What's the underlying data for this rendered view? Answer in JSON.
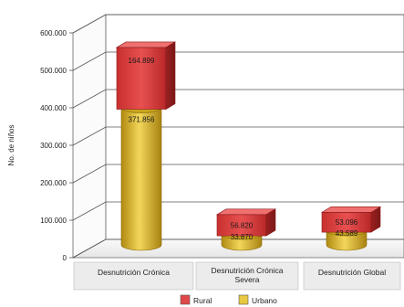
{
  "chart_data": {
    "type": "bar",
    "stacked": true,
    "three_d": true,
    "ylabel": "No. de niños",
    "ylim": [
      0,
      600000
    ],
    "y_ticks": [
      "0",
      "100.000",
      "200.000",
      "300.000",
      "400.000",
      "500.000",
      "600.000"
    ],
    "categories": [
      [
        "Desnutrición Crónica"
      ],
      [
        "Desnutrición Crónica",
        "Severa"
      ],
      [
        "Desnutrición Global"
      ]
    ],
    "series": [
      {
        "name": "Urbano",
        "color": "#e8c840",
        "values": [
          371856,
          33870,
          43589
        ],
        "labels": [
          "371.856",
          "33.870",
          "43.589"
        ]
      },
      {
        "name": "Rural",
        "color": "#e04848",
        "values": [
          164899,
          56820,
          53096
        ],
        "labels": [
          "164.899",
          "56.820",
          "53.096"
        ]
      }
    ],
    "legend": {
      "position": "bottom",
      "items": [
        "Rural",
        "Urbano"
      ]
    },
    "grid": true
  }
}
